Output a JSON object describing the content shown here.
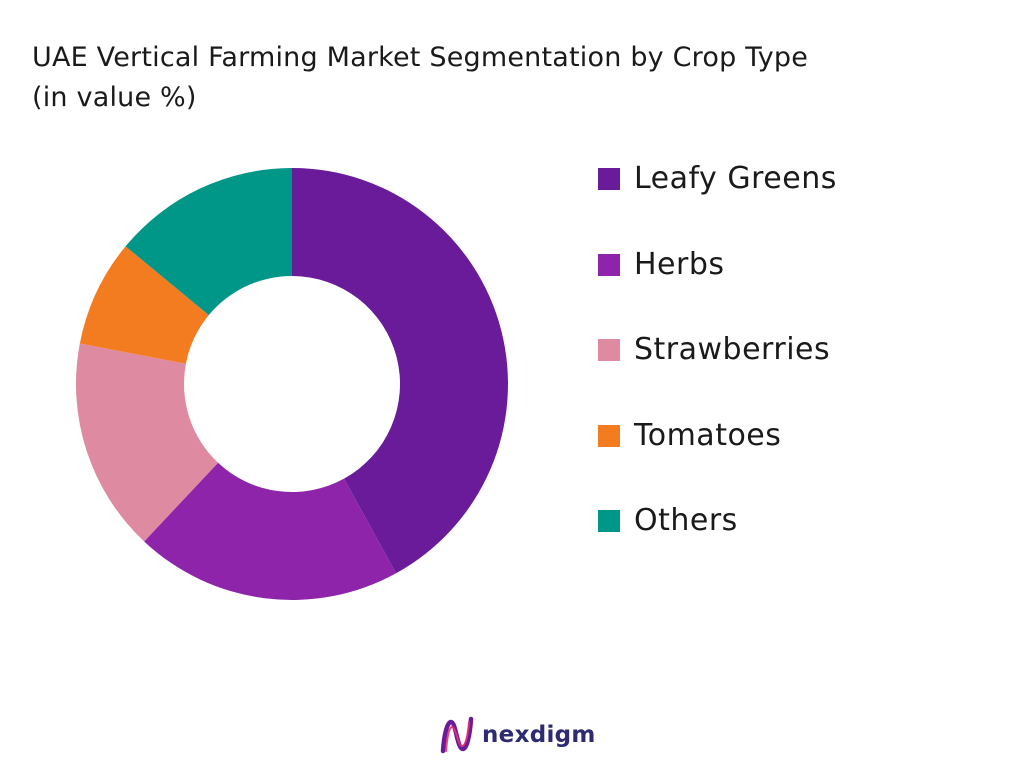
{
  "chart_data": {
    "type": "pie",
    "variant": "donut",
    "title": "UAE Vertical Farming Market Segmentation by Crop Type",
    "subtitle": "(in value %)",
    "categories": [
      "Leafy Greens",
      "Herbs",
      "Strawberries",
      "Tomatoes",
      "Others"
    ],
    "values": [
      42,
      20,
      16,
      8,
      14
    ],
    "unit": "%",
    "colors": [
      "#6a1b9a",
      "#8e24aa",
      "#de8aa0",
      "#f47c20",
      "#009688"
    ],
    "legend_position": "right",
    "start_angle": "12 o'clock",
    "direction": "clockwise"
  },
  "brand": {
    "name": "nexdigm",
    "logo_icon": "nexdigm-logo-icon",
    "colors": [
      "#6a1b9a",
      "#e8306e",
      "#2e2b73"
    ]
  }
}
